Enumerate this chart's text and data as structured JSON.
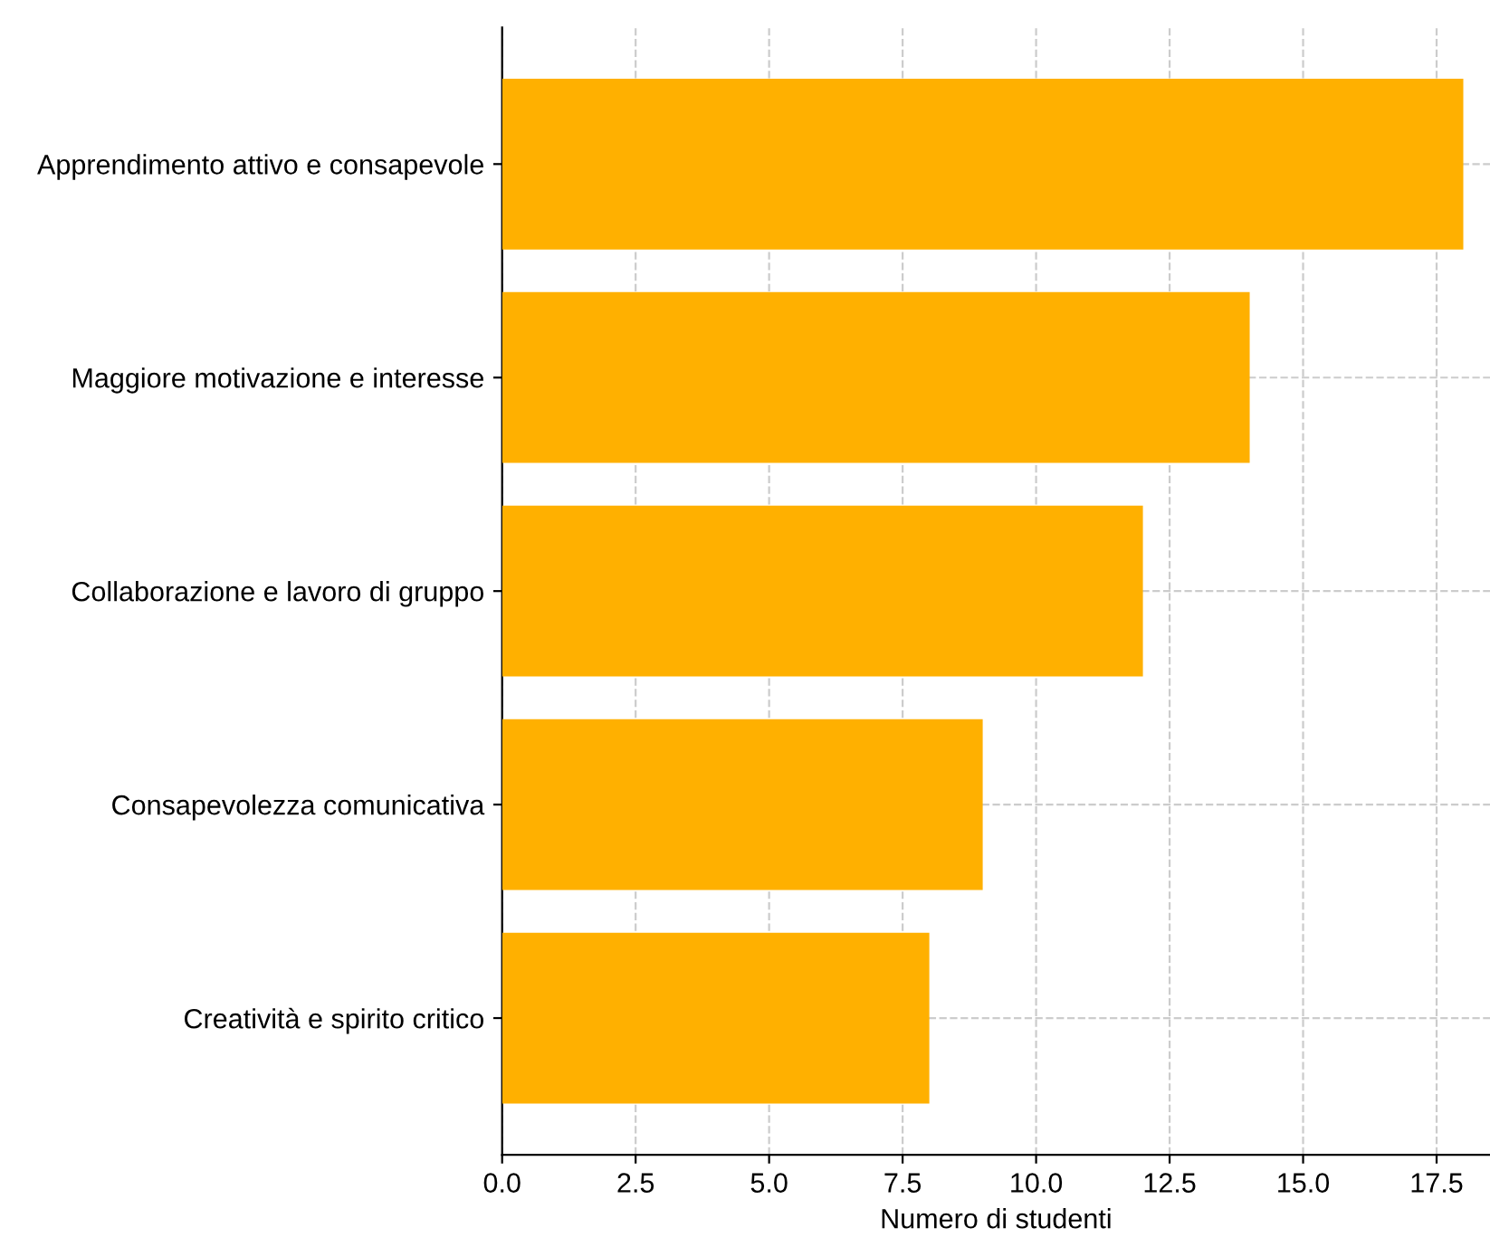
{
  "chart_data": {
    "type": "bar",
    "orientation": "horizontal",
    "xlabel": "Numero di studenti",
    "categories": [
      "Apprendimento attivo e consapevole",
      "Maggiore motivazione e interesse",
      "Collaborazione e lavoro di gruppo",
      "Consapevolezza comunicativa",
      "Creatività e spirito critico"
    ],
    "values": [
      18,
      14,
      12,
      9,
      8
    ],
    "color": "#ffb000",
    "xlim": [
      0,
      18.5
    ],
    "xticks": [
      {
        "value": 0,
        "label": "0.0"
      },
      {
        "value": 2.5,
        "label": "2.5"
      },
      {
        "value": 5,
        "label": "5.0"
      },
      {
        "value": 7.5,
        "label": "7.5"
      },
      {
        "value": 10,
        "label": "10.0"
      },
      {
        "value": 12.5,
        "label": "12.5"
      },
      {
        "value": 15,
        "label": "15.0"
      },
      {
        "value": 17.5,
        "label": "17.5"
      }
    ],
    "grid": true
  }
}
